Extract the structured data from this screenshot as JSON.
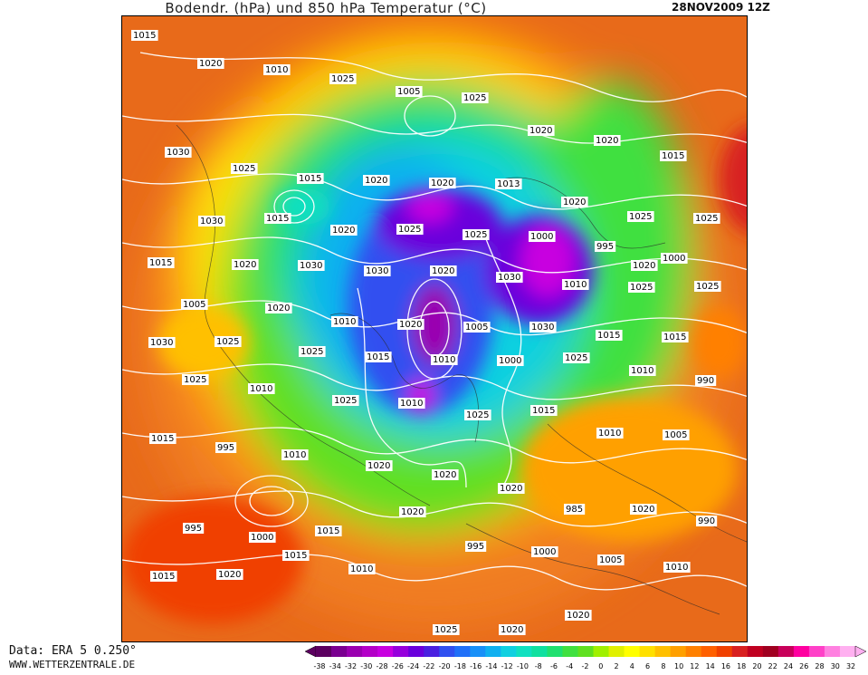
{
  "header": {
    "title": "Bodendr. (hPa) und 850 hPa Temperatur (°C)",
    "date": "28NOV2009 12Z"
  },
  "footer": {
    "source": "Data: ERA 5 0.250°",
    "website": "WWW.WETTERZENTRALE.DE"
  },
  "legend": {
    "ticks": [
      "-38",
      "-34",
      "-32",
      "-30",
      "-28",
      "-26",
      "-24",
      "-22",
      "-20",
      "-18",
      "-16",
      "-14",
      "-12",
      "-10",
      "-8",
      "-6",
      "-4",
      "-2",
      "0",
      "2",
      "4",
      "6",
      "8",
      "10",
      "12",
      "14",
      "16",
      "18",
      "20",
      "22",
      "24",
      "26",
      "28",
      "30",
      "32"
    ],
    "colors": [
      "#5c0060",
      "#7a0090",
      "#9a00b0",
      "#b400c8",
      "#c800e0",
      "#9600dc",
      "#6a00dc",
      "#4a20e0",
      "#3050f0",
      "#2070f8",
      "#1890f8",
      "#10b0f0",
      "#10d0e0",
      "#10e0c0",
      "#10e0a0",
      "#20e070",
      "#40e040",
      "#60e020",
      "#a0f000",
      "#e0f000",
      "#ffff00",
      "#ffe000",
      "#ffc000",
      "#ffa000",
      "#ff8000",
      "#ff6000",
      "#f04000",
      "#d82020",
      "#c00020",
      "#a00020",
      "#c8005a",
      "#ff00a0",
      "#ff40c8",
      "#ff80e0",
      "#ffb0f0"
    ]
  },
  "map": {
    "isobar_labels": [
      {
        "text": "1015",
        "x": 1015,
        "y": 36
      },
      {
        "text": "1020",
        "x": 1020,
        "y": 67
      },
      {
        "text": "1010",
        "x": 1010,
        "y": 74
      },
      {
        "text": "1025",
        "x": 1025,
        "y": 84
      },
      {
        "text": "1005",
        "x": 1005,
        "y": 98
      },
      {
        "text": "1025",
        "x": 1025,
        "y": 105
      },
      {
        "text": "1020",
        "x": 1020,
        "y": 141
      },
      {
        "text": "1020",
        "x": 1020,
        "y": 152
      },
      {
        "text": "1015",
        "x": 1015,
        "y": 169
      },
      {
        "text": "1030",
        "x": 1030,
        "y": 165
      },
      {
        "text": "1025",
        "x": 1025,
        "y": 183
      },
      {
        "text": "1015",
        "x": 1015,
        "y": 194
      },
      {
        "text": "1020",
        "x": 1020,
        "y": 196
      },
      {
        "text": "1020",
        "x": 1020,
        "y": 199
      },
      {
        "text": "1013",
        "x": 1013,
        "y": 200
      },
      {
        "text": "1020",
        "x": 1020,
        "y": 220
      },
      {
        "text": "1025",
        "x": 1025,
        "y": 236
      },
      {
        "text": "1025",
        "x": 1025,
        "y": 238
      },
      {
        "text": "1030",
        "x": 1030,
        "y": 241
      },
      {
        "text": "1015",
        "x": 1015,
        "y": 238
      },
      {
        "text": "1020",
        "x": 1020,
        "y": 251
      },
      {
        "text": "1025",
        "x": 1025,
        "y": 250
      },
      {
        "text": "1025",
        "x": 1025,
        "y": 256
      },
      {
        "text": "1000",
        "x": 1000,
        "y": 258
      },
      {
        "text": "995",
        "x": 995,
        "y": 269
      },
      {
        "text": "1000",
        "x": 1000,
        "y": 282
      },
      {
        "text": "1015",
        "x": 1015,
        "y": 287
      },
      {
        "text": "1020",
        "x": 1020,
        "y": 289
      },
      {
        "text": "1030",
        "x": 1030,
        "y": 290
      },
      {
        "text": "1030",
        "x": 1030,
        "y": 296
      },
      {
        "text": "1020",
        "x": 1020,
        "y": 296
      },
      {
        "text": "1030",
        "x": 1030,
        "y": 303
      },
      {
        "text": "1010",
        "x": 1010,
        "y": 311
      },
      {
        "text": "1025",
        "x": 1025,
        "y": 314
      },
      {
        "text": "1025",
        "x": 1025,
        "y": 313
      },
      {
        "text": "1005",
        "x": 1005,
        "y": 333
      },
      {
        "text": "1020",
        "x": 1020,
        "y": 337
      },
      {
        "text": "1010",
        "x": 1010,
        "y": 352
      },
      {
        "text": "1020",
        "x": 1020,
        "y": 355
      },
      {
        "text": "1005",
        "x": 1005,
        "y": 358
      },
      {
        "text": "1030",
        "x": 1030,
        "y": 358
      },
      {
        "text": "1015",
        "x": 1015,
        "y": 367
      },
      {
        "text": "1015",
        "x": 1015,
        "y": 369
      },
      {
        "text": "1030",
        "x": 1030,
        "y": 375
      },
      {
        "text": "1025",
        "x": 1025,
        "y": 374
      },
      {
        "text": "1025",
        "x": 1025,
        "y": 385
      },
      {
        "text": "1015",
        "x": 1015,
        "y": 391
      },
      {
        "text": "1010",
        "x": 1010,
        "y": 394
      },
      {
        "text": "1000",
        "x": 1000,
        "y": 395
      },
      {
        "text": "1025",
        "x": 1025,
        "y": 392
      },
      {
        "text": "1010",
        "x": 1010,
        "y": 406
      },
      {
        "text": "990",
        "x": 990,
        "y": 417
      },
      {
        "text": "1025",
        "x": 1025,
        "y": 416
      },
      {
        "text": "1010",
        "x": 1010,
        "y": 426
      },
      {
        "text": "1025",
        "x": 1025,
        "y": 439
      },
      {
        "text": "1010",
        "x": 1010,
        "y": 442
      },
      {
        "text": "1025",
        "x": 1025,
        "y": 455
      },
      {
        "text": "1015",
        "x": 1015,
        "y": 450
      },
      {
        "text": "1010",
        "x": 1010,
        "y": 475
      },
      {
        "text": "1005",
        "x": 1005,
        "y": 477
      },
      {
        "text": "1015",
        "x": 1015,
        "y": 481
      },
      {
        "text": "995",
        "x": 995,
        "y": 491
      },
      {
        "text": "1010",
        "x": 1010,
        "y": 499
      },
      {
        "text": "1020",
        "x": 1020,
        "y": 511
      },
      {
        "text": "1020",
        "x": 1020,
        "y": 521
      },
      {
        "text": "1020",
        "x": 1020,
        "y": 536
      },
      {
        "text": "985",
        "x": 985,
        "y": 559
      },
      {
        "text": "1020",
        "x": 1020,
        "y": 559
      },
      {
        "text": "990",
        "x": 990,
        "y": 572
      },
      {
        "text": "995",
        "x": 995,
        "y": 580
      },
      {
        "text": "1000",
        "x": 1000,
        "y": 590
      },
      {
        "text": "1015",
        "x": 1015,
        "y": 583
      },
      {
        "text": "1020",
        "x": 1020,
        "y": 562
      },
      {
        "text": "995",
        "x": 995,
        "y": 600
      },
      {
        "text": "1000",
        "x": 1000,
        "y": 606
      },
      {
        "text": "1005",
        "x": 1005,
        "y": 615
      },
      {
        "text": "1010",
        "x": 1010,
        "y": 623
      },
      {
        "text": "1015",
        "x": 1015,
        "y": 633
      },
      {
        "text": "1020",
        "x": 1020,
        "y": 631
      },
      {
        "text": "1015",
        "x": 1015,
        "y": 610
      },
      {
        "text": "1010",
        "x": 1010,
        "y": 625
      },
      {
        "text": "1025",
        "x": 1025,
        "y": 694
      },
      {
        "text": "1020",
        "x": 1020,
        "y": 697
      },
      {
        "text": "1020",
        "x": 1020,
        "y": 676
      },
      {
        "text": "1020",
        "x": 1020,
        "y": 290
      }
    ]
  }
}
